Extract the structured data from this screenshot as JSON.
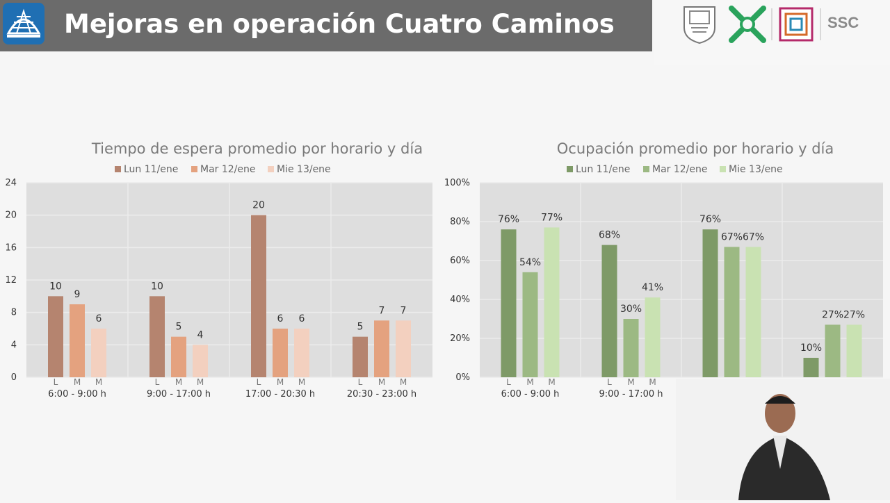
{
  "header": {
    "title": "Mejoras en operación Cuatro Caminos",
    "logos": [
      "cdmx-shield-icon",
      "metro-logo-icon",
      "stc-logo-icon"
    ],
    "ssc_text": "SSC"
  },
  "colors": {
    "header_bg": "#6b6b6b",
    "left_series": [
      "#b5846f",
      "#e4a27f",
      "#f3d0bf"
    ],
    "right_series": [
      "#7e9a67",
      "#9cb983",
      "#c9e2b2"
    ],
    "plot_bg": "#dedede"
  },
  "chart_data": [
    {
      "type": "bar",
      "title": "Tiempo de espera promedio por horario y día",
      "categories": [
        "6:00 - 9:00 h",
        "9:00 - 17:00 h",
        "17:00 - 20:30 h",
        "20:30 - 23:00 h"
      ],
      "subcategories": [
        "L",
        "M",
        "M"
      ],
      "series": [
        {
          "name": "Lun 11/ene",
          "values": [
            10,
            10,
            20,
            5
          ]
        },
        {
          "name": "Mar 12/ene",
          "values": [
            9,
            5,
            6,
            7
          ]
        },
        {
          "name": "Mie 13/ene",
          "values": [
            6,
            4,
            6,
            7
          ]
        }
      ],
      "ylim": [
        0,
        24
      ],
      "yticks": [
        "0",
        "4",
        "8",
        "12",
        "16",
        "20",
        "24"
      ],
      "legend": "top",
      "grid": true
    },
    {
      "type": "bar",
      "title": "Ocupación promedio por horario y día",
      "categories": [
        "6:00 - 9:00 h",
        "9:00 - 17:00 h",
        "",
        ""
      ],
      "subcategories": [
        "L",
        "M",
        "M"
      ],
      "series": [
        {
          "name": "Lun 11/ene",
          "values": [
            76,
            68,
            76,
            10
          ]
        },
        {
          "name": "Mar 12/ene",
          "values": [
            54,
            30,
            67,
            27
          ]
        },
        {
          "name": "Mie 13/ene",
          "values": [
            77,
            41,
            67,
            27
          ]
        }
      ],
      "ylim": [
        0,
        100
      ],
      "yticks": [
        "0%",
        "20%",
        "40%",
        "60%",
        "80%",
        "100%"
      ],
      "value_suffix": "%",
      "legend": "top",
      "grid": true
    }
  ]
}
